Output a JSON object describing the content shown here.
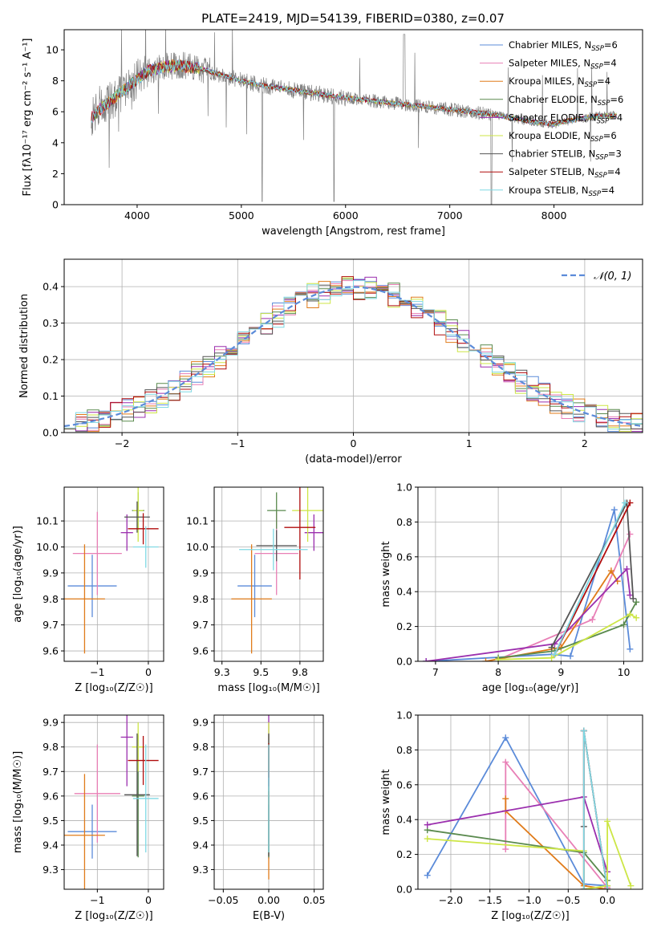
{
  "figure": {
    "title": "PLATE=2419, MJD=54139, FIBERID=0380, z=0.07"
  },
  "models": [
    {
      "name": "Chabrier MILES",
      "nssp": "6",
      "color": "#5b8bd9"
    },
    {
      "name": "Salpeter MILES",
      "nssp": "4",
      "color": "#e87fb6"
    },
    {
      "name": "Kroupa MILES",
      "nssp": "4",
      "color": "#e07b1a"
    },
    {
      "name": "Chabrier ELODIE",
      "nssp": "6",
      "color": "#5a8a4e"
    },
    {
      "name": "Salpeter ELODIE",
      "nssp": "4",
      "color": "#9b2fae"
    },
    {
      "name": "Kroupa ELODIE",
      "nssp": "6",
      "color": "#cde646"
    },
    {
      "name": "Chabrier STELIB",
      "nssp": "3",
      "color": "#555555"
    },
    {
      "name": "Salpeter STELIB",
      "nssp": "4",
      "color": "#b00c0c"
    },
    {
      "name": "Kroupa STELIB",
      "nssp": "4",
      "color": "#7fd8e3"
    }
  ],
  "chart_data": [
    {
      "id": "spectrum",
      "type": "line",
      "xlabel": "wavelength [Angstrom, rest frame]",
      "ylabel": "Flux [fλ10⁻¹⁷ erg cm⁻² s⁻¹ A⁻¹]",
      "xlim": [
        3300,
        8850
      ],
      "ylim": [
        0,
        11.3
      ],
      "xticks": [
        4000,
        5000,
        6000,
        7000,
        8000
      ],
      "yticks": [
        0,
        2,
        4,
        6,
        8,
        10
      ],
      "observed_color": "#808080",
      "continuum": {
        "x": [
          3560,
          3650,
          3750,
          3850,
          3950,
          4000,
          4100,
          4250,
          4400,
          4600,
          4800,
          5000,
          5200,
          5400,
          5600,
          5800,
          6000,
          6200,
          6400,
          6600,
          6800,
          7000,
          7200,
          7400,
          7600,
          7800,
          8000,
          8200,
          8400,
          8600
        ],
        "y": [
          5.6,
          6.2,
          6.7,
          7.3,
          7.8,
          8.1,
          8.6,
          8.9,
          9.0,
          8.8,
          8.4,
          8.0,
          7.7,
          7.5,
          7.3,
          7.1,
          6.9,
          6.75,
          6.6,
          6.45,
          6.3,
          6.15,
          6.0,
          5.85,
          5.6,
          5.35,
          5.2,
          5.5,
          5.7,
          5.75
        ]
      }
    },
    {
      "id": "residuals",
      "type": "bar",
      "xlabel": "(data-model)/error",
      "ylabel": "Normed distribution",
      "xlim": [
        -2.5,
        2.5
      ],
      "ylim": [
        0,
        0.475
      ],
      "xticks": [
        -2,
        -1,
        0,
        1,
        2
      ],
      "yticks": [
        0.0,
        0.1,
        0.2,
        0.3,
        0.4
      ],
      "bin_width": 0.1,
      "reference_label": "𝒩(0, 1)",
      "reference_color": "#5b8bd9",
      "grid": true,
      "legend_position": "top-right"
    },
    {
      "id": "age-vs-Z",
      "type": "scatter",
      "xlabel": "Z [log₁₀(Z/Z☉)]",
      "ylabel": "age  [log₁₀(age/yr)]",
      "xlim": [
        -1.65,
        0.3
      ],
      "ylim": [
        9.56,
        10.23
      ],
      "xticks": [
        -1,
        0
      ],
      "yticks": [
        9.6,
        9.7,
        9.8,
        9.9,
        10.0,
        10.1
      ],
      "points": [
        {
          "x": -1.1,
          "xerr": 0.48,
          "y": 9.85,
          "yerr": 0.12
        },
        {
          "x": -1.0,
          "xerr": 0.48,
          "y": 9.975,
          "yerr": 0.16
        },
        {
          "x": -1.25,
          "xerr": 0.4,
          "y": 9.8,
          "yerr": 0.21
        },
        {
          "x": -0.2,
          "xerr": 0.12,
          "y": 10.14,
          "yerr": 0.07
        },
        {
          "x": -0.42,
          "xerr": 0.12,
          "y": 10.055,
          "yerr": 0.07
        },
        {
          "x": -0.2,
          "xerr": 0.1,
          "y": 10.14,
          "yerr": 0.12
        },
        {
          "x": -0.22,
          "xerr": 0.25,
          "y": 10.115,
          "yerr": 0.06
        },
        {
          "x": -0.1,
          "xerr": 0.3,
          "y": 10.07,
          "yerr": 0.06
        },
        {
          "x": -0.05,
          "xerr": 0.25,
          "y": 10.0,
          "yerr": 0.08
        }
      ]
    },
    {
      "id": "age-vs-mass",
      "type": "scatter",
      "xlabel": "mass [log₁₀(M/M☉)]",
      "ylabel": "",
      "xlim": [
        9.2,
        9.9
      ],
      "ylim": [
        9.56,
        10.23
      ],
      "xticks": [
        9.25,
        9.5,
        9.75
      ],
      "yticks": [
        9.6,
        9.7,
        9.8,
        9.9,
        10.0,
        10.1
      ],
      "points": [
        {
          "x": 9.46,
          "xerr": 0.11,
          "y": 9.85,
          "yerr": 0.12
        },
        {
          "x": 9.6,
          "xerr": 0.14,
          "y": 9.975,
          "yerr": 0.16
        },
        {
          "x": 9.44,
          "xerr": 0.13,
          "y": 9.8,
          "yerr": 0.21
        },
        {
          "x": 9.6,
          "xerr": 0.06,
          "y": 10.14,
          "yerr": 0.07
        },
        {
          "x": 9.84,
          "xerr": 0.06,
          "y": 10.055,
          "yerr": 0.07
        },
        {
          "x": 9.8,
          "xerr": 0.1,
          "y": 10.14,
          "yerr": 0.12
        },
        {
          "x": 9.6,
          "xerr": 0.13,
          "y": 10.005,
          "yerr": 0.06
        },
        {
          "x": 9.75,
          "xerr": 0.1,
          "y": 10.075,
          "yerr": 0.2
        },
        {
          "x": 9.58,
          "xerr": 0.22,
          "y": 9.99,
          "yerr": 0.08
        }
      ]
    },
    {
      "id": "weight-vs-age",
      "type": "line",
      "xlabel": "age  [log₁₀(age/yr)]",
      "ylabel": "mass weight",
      "xlim": [
        6.72,
        10.3
      ],
      "ylim": [
        0,
        1.0
      ],
      "xticks": [
        7,
        8,
        9,
        10
      ],
      "yticks": [
        0.0,
        0.2,
        0.4,
        0.6,
        0.8,
        1.0
      ],
      "grid": true,
      "series": [
        {
          "x": [
            6.85,
            8.85,
            9.15,
            9.85,
            10.1
          ],
          "y": [
            0.0,
            0.04,
            0.03,
            0.87,
            0.07
          ]
        },
        {
          "x": [
            8.0,
            9.5,
            10.1
          ],
          "y": [
            0.01,
            0.24,
            0.73
          ]
        },
        {
          "x": [
            7.8,
            9.0,
            9.8,
            9.9
          ],
          "y": [
            0.0,
            0.08,
            0.52,
            0.46
          ]
        },
        {
          "x": [
            8.0,
            8.9,
            10.0,
            10.2
          ],
          "y": [
            0.02,
            0.06,
            0.21,
            0.34
          ]
        },
        {
          "x": [
            6.85,
            8.9,
            10.05,
            10.1
          ],
          "y": [
            0.0,
            0.1,
            0.53,
            0.38
          ]
        },
        {
          "x": [
            8.0,
            8.85,
            10.1,
            10.2
          ],
          "y": [
            0.01,
            0.02,
            0.27,
            0.25
          ]
        },
        {
          "x": [
            8.85,
            10.05,
            10.15
          ],
          "y": [
            0.08,
            0.91,
            0.36
          ]
        },
        {
          "x": [
            8.9,
            10.1
          ],
          "y": [
            0.04,
            0.91
          ]
        },
        {
          "x": [
            8.9,
            10.02
          ],
          "y": [
            0.04,
            0.91
          ]
        }
      ]
    },
    {
      "id": "mass-vs-Z",
      "type": "scatter",
      "xlabel": "Z [log₁₀(Z/Z☉)]",
      "ylabel": "mass [log₁₀(M/M☉)]",
      "xlim": [
        -1.65,
        0.3
      ],
      "ylim": [
        9.22,
        9.93
      ],
      "xticks": [
        -1,
        0
      ],
      "yticks": [
        9.3,
        9.4,
        9.5,
        9.6,
        9.7,
        9.8,
        9.9
      ],
      "points": [
        {
          "x": -1.1,
          "xerr": 0.48,
          "y": 9.455,
          "yerr": 0.11
        },
        {
          "x": -1.0,
          "xerr": 0.45,
          "y": 9.61,
          "yerr": 0.2
        },
        {
          "x": -1.25,
          "xerr": 0.4,
          "y": 9.44,
          "yerr": 0.25
        },
        {
          "x": -0.2,
          "xerr": 0.12,
          "y": 9.6,
          "yerr": 0.25
        },
        {
          "x": -0.42,
          "xerr": 0.12,
          "y": 9.84,
          "yerr": 0.2
        },
        {
          "x": -0.2,
          "xerr": 0.12,
          "y": 9.8,
          "yerr": 0.1
        },
        {
          "x": -0.22,
          "xerr": 0.25,
          "y": 9.605,
          "yerr": 0.25
        },
        {
          "x": -0.1,
          "xerr": 0.3,
          "y": 9.745,
          "yerr": 0.1
        },
        {
          "x": -0.05,
          "xerr": 0.25,
          "y": 9.59,
          "yerr": 0.22
        }
      ]
    },
    {
      "id": "mass-vs-EBV",
      "type": "scatter",
      "xlabel": "E(B-V)",
      "ylabel": "",
      "xlim": [
        -0.06,
        0.06
      ],
      "ylim": [
        9.22,
        9.93
      ],
      "xticks": [
        -0.05,
        0.0,
        0.05
      ],
      "xtick_labels": [
        "−0.05",
        "0.00",
        "0.05"
      ],
      "yticks": [
        9.3,
        9.4,
        9.5,
        9.6,
        9.7,
        9.8,
        9.9
      ],
      "points": [
        {
          "x": 0.0,
          "xerr": 0.0,
          "y": 9.455,
          "yerr": 0.11
        },
        {
          "x": 0.0,
          "xerr": 0.0,
          "y": 9.61,
          "yerr": 0.2
        },
        {
          "x": 0.0,
          "xerr": 0.0,
          "y": 9.44,
          "yerr": 0.18
        },
        {
          "x": 0.0,
          "xerr": 0.0,
          "y": 9.6,
          "yerr": 0.25
        },
        {
          "x": 0.0,
          "xerr": 0.0,
          "y": 9.84,
          "yerr": 0.2
        },
        {
          "x": 0.0,
          "xerr": 0.0,
          "y": 9.8,
          "yerr": 0.1
        },
        {
          "x": 0.0,
          "xerr": 0.0,
          "y": 9.605,
          "yerr": 0.25
        },
        {
          "x": 0.0,
          "xerr": 0.0,
          "y": 9.745,
          "yerr": 0.07
        },
        {
          "x": 0.0,
          "xerr": 0.0,
          "y": 9.59,
          "yerr": 0.22
        }
      ]
    },
    {
      "id": "weight-vs-Z",
      "type": "line",
      "xlabel": "Z [log₁₀(Z/Z☉)]",
      "ylabel": "mass weight",
      "xlim": [
        -2.42,
        0.45
      ],
      "ylim": [
        0,
        1.0
      ],
      "xticks": [
        -2.0,
        -1.5,
        -1.0,
        -0.5,
        0.0
      ],
      "xtick_labels": [
        "−2.0",
        "−1.5",
        "−1.0",
        "−0.5",
        "0.0"
      ],
      "yticks": [
        0.0,
        0.2,
        0.4,
        0.6,
        0.8,
        1.0
      ],
      "grid": true,
      "series": [
        {
          "x": [
            -2.3,
            -1.3,
            -0.3,
            0.0
          ],
          "y": [
            0.08,
            0.87,
            0.03,
            0.02
          ]
        },
        {
          "x": [
            -1.3,
            -1.3,
            0.0,
            0.0
          ],
          "y": [
            0.23,
            0.73,
            0.01,
            0.0
          ]
        },
        {
          "x": [
            -1.3,
            -1.3,
            -0.3,
            0.0
          ],
          "y": [
            0.52,
            0.45,
            0.02,
            0.0
          ]
        },
        {
          "x": [
            -2.3,
            -0.3,
            0.0
          ],
          "y": [
            0.34,
            0.21,
            0.05
          ]
        },
        {
          "x": [
            -2.3,
            -0.3,
            0.0
          ],
          "y": [
            0.37,
            0.53,
            0.1
          ]
        },
        {
          "x": [
            -2.3,
            -0.3,
            -0.3,
            0.0,
            0.0,
            0.3
          ],
          "y": [
            0.29,
            0.22,
            0.0,
            0.02,
            0.39,
            0.02
          ]
        },
        {
          "x": [
            -0.3,
            -0.3,
            0.0
          ],
          "y": [
            0.36,
            0.91,
            0.0
          ]
        },
        {
          "x": [
            -0.3,
            -0.3,
            0.0
          ],
          "y": [
            0.0,
            0.91,
            0.0
          ]
        },
        {
          "x": [
            -0.3,
            -0.3,
            0.0
          ],
          "y": [
            0.0,
            0.91,
            0.0
          ]
        }
      ]
    }
  ]
}
